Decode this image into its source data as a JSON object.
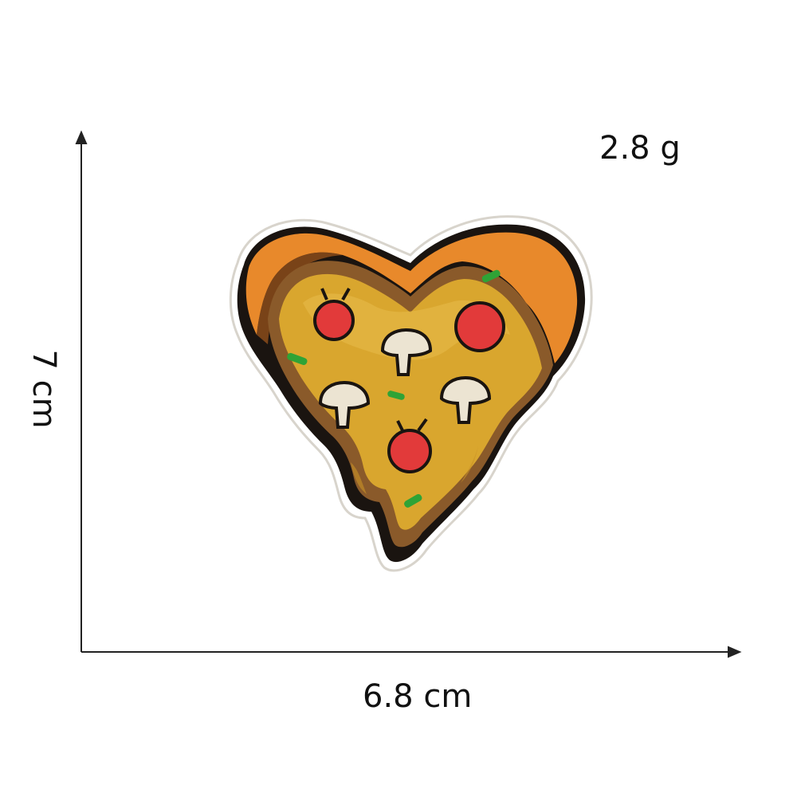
{
  "dimensions": {
    "weight": "2.8 g",
    "width": "6.8 cm",
    "height": "7 cm"
  },
  "colors": {
    "crust_orange": "#e8892b",
    "crust_dark": "#b8621c",
    "cheese": "#d9a62e",
    "cheese_light": "#e4b846",
    "sauce_brown": "#8a5a2a",
    "pepperoni": "#e23a3a",
    "mushroom": "#ece4d2",
    "herb": "#2fa336",
    "outline": "#1a1410",
    "backing": "#ffffff"
  },
  "icons": {
    "patch": "pizza-heart-patch-icon"
  }
}
